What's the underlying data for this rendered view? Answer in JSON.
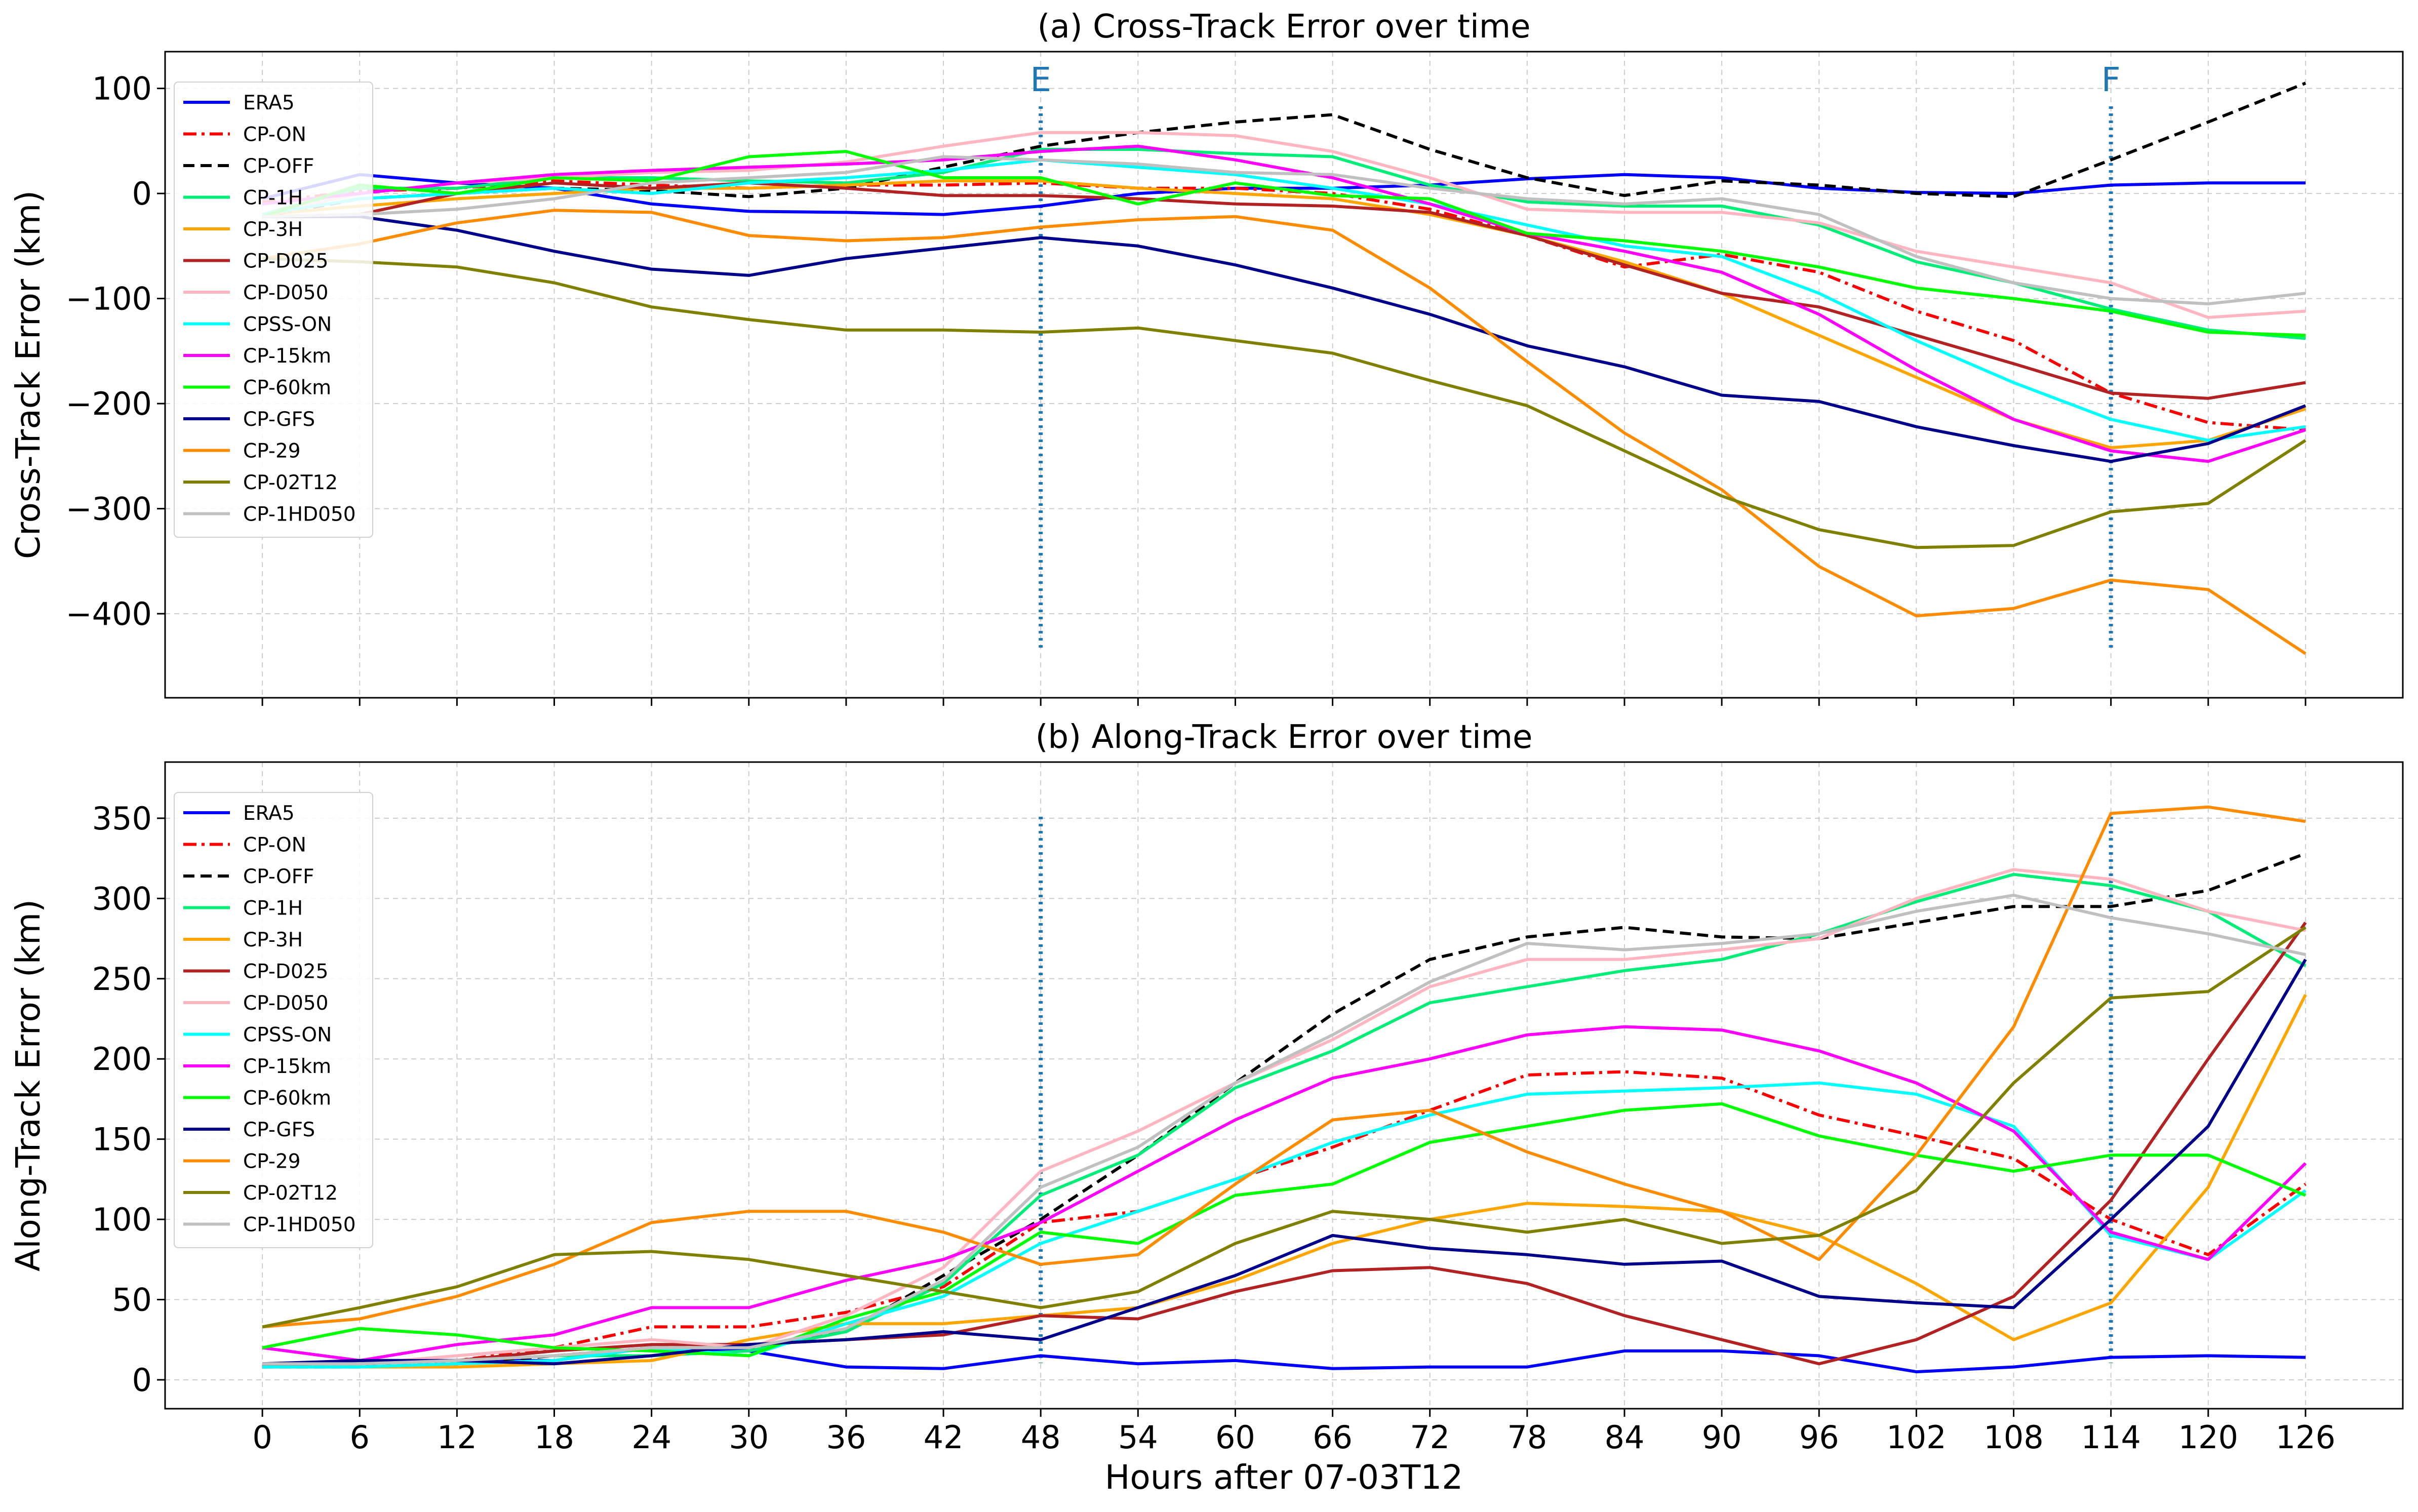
{
  "chart_data": [
    {
      "type": "line",
      "title": "(a) Cross-Track Error over time",
      "xlabel": "",
      "ylabel": "Cross-Track Error (km)",
      "x": [
        0,
        6,
        12,
        18,
        24,
        30,
        36,
        42,
        48,
        54,
        60,
        66,
        72,
        78,
        84,
        90,
        96,
        102,
        108,
        114,
        120,
        126
      ],
      "xlim": [
        -6,
        132
      ],
      "ylim": [
        -480,
        135
      ],
      "yticks": [
        100,
        0,
        -100,
        -200,
        -300,
        -400
      ],
      "grid": true,
      "legend_position": "left",
      "event_lines": [
        {
          "x": 48,
          "label": "E"
        },
        {
          "x": 114,
          "label": "F"
        }
      ],
      "series": [
        {
          "name": "ERA5",
          "color": "#0000ff",
          "dash": "solid",
          "values": [
            -5,
            18,
            10,
            5,
            -10,
            -17,
            -18,
            -20,
            -12,
            0,
            5,
            5,
            8,
            14,
            18,
            15,
            5,
            1,
            0,
            8,
            10,
            10
          ]
        },
        {
          "name": "CP-ON",
          "color": "#ff0000",
          "dash": "dashdot",
          "values": [
            -8,
            2,
            5,
            12,
            8,
            5,
            8,
            8,
            10,
            5,
            5,
            0,
            -15,
            -40,
            -70,
            -58,
            -75,
            -112,
            -140,
            -190,
            -218,
            -225
          ]
        },
        {
          "name": "CP-OFF",
          "color": "#000000",
          "dash": "dashed",
          "values": [
            -22,
            -5,
            0,
            5,
            3,
            -3,
            5,
            25,
            45,
            58,
            68,
            75,
            42,
            15,
            -2,
            12,
            8,
            0,
            -3,
            32,
            68,
            105
          ]
        },
        {
          "name": "CP-1H",
          "color": "#00ee77",
          "dash": "solid",
          "values": [
            -20,
            5,
            5,
            15,
            15,
            12,
            10,
            20,
            42,
            42,
            38,
            35,
            8,
            -8,
            -12,
            -12,
            -30,
            -65,
            -85,
            -110,
            -130,
            -138
          ]
        },
        {
          "name": "CP-3H",
          "color": "#ffa500",
          "dash": "solid",
          "values": [
            -20,
            -12,
            -5,
            0,
            5,
            5,
            8,
            12,
            12,
            5,
            0,
            -5,
            -20,
            -40,
            -65,
            -95,
            -135,
            -175,
            -215,
            -242,
            -235,
            -205
          ]
        },
        {
          "name": "CP-D025",
          "color": "#b22222",
          "dash": "solid",
          "values": [
            -22,
            -20,
            0,
            10,
            5,
            10,
            5,
            -2,
            -2,
            -5,
            -10,
            -12,
            -18,
            -40,
            -68,
            -95,
            -108,
            -135,
            -162,
            -190,
            -195,
            -180
          ]
        },
        {
          "name": "CP-D050",
          "color": "#ffb6c1",
          "dash": "solid",
          "values": [
            -20,
            0,
            10,
            15,
            20,
            22,
            30,
            45,
            58,
            58,
            55,
            40,
            15,
            -15,
            -18,
            -18,
            -28,
            -55,
            -70,
            -85,
            -118,
            -112
          ]
        },
        {
          "name": "CPSS-ON",
          "color": "#00ffff",
          "dash": "solid",
          "values": [
            -20,
            -5,
            0,
            5,
            0,
            10,
            15,
            22,
            32,
            25,
            18,
            5,
            -10,
            -30,
            -50,
            -60,
            -95,
            -140,
            -180,
            -215,
            -235,
            -222
          ]
        },
        {
          "name": "CP-15km",
          "color": "#ff00ff",
          "dash": "solid",
          "values": [
            -10,
            0,
            10,
            18,
            22,
            25,
            28,
            32,
            40,
            45,
            32,
            15,
            -10,
            -38,
            -55,
            -75,
            -115,
            -168,
            -215,
            -245,
            -255,
            -225
          ]
        },
        {
          "name": "CP-60km",
          "color": "#00ff00",
          "dash": "solid",
          "values": [
            -22,
            8,
            0,
            15,
            12,
            35,
            40,
            15,
            15,
            -10,
            10,
            -2,
            -5,
            -38,
            -45,
            -55,
            -70,
            -90,
            -100,
            -112,
            -132,
            -135
          ]
        },
        {
          "name": "CP-GFS",
          "color": "#00008b",
          "dash": "solid",
          "values": [
            -22,
            -22,
            -35,
            -55,
            -72,
            -78,
            -62,
            -52,
            -42,
            -50,
            -68,
            -90,
            -115,
            -145,
            -165,
            -192,
            -198,
            -222,
            -240,
            -255,
            -238,
            -202
          ]
        },
        {
          "name": "CP-29",
          "color": "#ff8c00",
          "dash": "solid",
          "values": [
            -62,
            -48,
            -28,
            -16,
            -18,
            -40,
            -45,
            -42,
            -32,
            -25,
            -22,
            -35,
            -90,
            -160,
            -228,
            -282,
            -355,
            -402,
            -395,
            -368,
            -377,
            -438
          ]
        },
        {
          "name": "CP-02T12",
          "color": "#808000",
          "dash": "solid",
          "values": [
            -62,
            -65,
            -70,
            -85,
            -108,
            -120,
            -130,
            -130,
            -132,
            -128,
            -140,
            -152,
            -178,
            -202,
            -245,
            -288,
            -320,
            -337,
            -335,
            -303,
            -295,
            -235
          ]
        },
        {
          "name": "CP-1HD050",
          "color": "#c0c0c0",
          "dash": "solid",
          "values": [
            -22,
            -20,
            -15,
            -5,
            10,
            15,
            20,
            35,
            32,
            28,
            20,
            18,
            5,
            -5,
            -10,
            -5,
            -20,
            -60,
            -85,
            -100,
            -105,
            -95
          ]
        }
      ]
    },
    {
      "type": "line",
      "title": "(b) Along-Track Error over time",
      "xlabel": "Hours after 07-03T12",
      "ylabel": "Along-Track Error (km)",
      "x": [
        0,
        6,
        12,
        18,
        24,
        30,
        36,
        42,
        48,
        54,
        60,
        66,
        72,
        78,
        84,
        90,
        96,
        102,
        108,
        114,
        120,
        126
      ],
      "xlim": [
        -6,
        132
      ],
      "ylim": [
        -18,
        385
      ],
      "yticks": [
        0,
        50,
        100,
        150,
        200,
        250,
        300,
        350
      ],
      "grid": true,
      "legend_position": "left",
      "event_lines": [
        {
          "x": 48,
          "label": ""
        },
        {
          "x": 114,
          "label": ""
        }
      ],
      "series": [
        {
          "name": "ERA5",
          "color": "#0000ff",
          "dash": "solid",
          "values": [
            8,
            12,
            12,
            12,
            20,
            18,
            8,
            7,
            15,
            10,
            12,
            7,
            8,
            8,
            18,
            18,
            15,
            5,
            8,
            14,
            15,
            14
          ]
        },
        {
          "name": "CP-ON",
          "color": "#ff0000",
          "dash": "dashdot",
          "values": [
            10,
            10,
            12,
            20,
            33,
            33,
            42,
            58,
            98,
            105,
            125,
            145,
            168,
            190,
            192,
            188,
            165,
            152,
            138,
            100,
            78,
            122
          ]
        },
        {
          "name": "CP-OFF",
          "color": "#000000",
          "dash": "dashed",
          "values": [
            8,
            8,
            10,
            15,
            20,
            20,
            30,
            65,
            100,
            140,
            185,
            228,
            262,
            276,
            282,
            276,
            275,
            285,
            295,
            295,
            305,
            328
          ]
        },
        {
          "name": "CP-1H",
          "color": "#00ee77",
          "dash": "solid",
          "values": [
            10,
            10,
            12,
            15,
            15,
            18,
            30,
            60,
            115,
            140,
            182,
            205,
            235,
            245,
            255,
            262,
            278,
            298,
            315,
            308,
            292,
            258
          ]
        },
        {
          "name": "CP-3H",
          "color": "#ffa500",
          "dash": "solid",
          "values": [
            8,
            8,
            8,
            10,
            12,
            25,
            35,
            35,
            40,
            45,
            62,
            85,
            100,
            110,
            108,
            105,
            90,
            60,
            25,
            48,
            120,
            240
          ]
        },
        {
          "name": "CP-D025",
          "color": "#b22222",
          "dash": "solid",
          "values": [
            8,
            12,
            12,
            18,
            22,
            22,
            25,
            28,
            40,
            38,
            55,
            68,
            70,
            60,
            40,
            25,
            10,
            25,
            52,
            112,
            200,
            285
          ]
        },
        {
          "name": "CP-D050",
          "color": "#ffb6c1",
          "dash": "solid",
          "values": [
            10,
            10,
            15,
            20,
            25,
            20,
            40,
            70,
            130,
            155,
            185,
            212,
            245,
            262,
            262,
            268,
            275,
            300,
            318,
            312,
            292,
            280
          ]
        },
        {
          "name": "CPSS-ON",
          "color": "#00ffff",
          "dash": "solid",
          "values": [
            8,
            8,
            10,
            12,
            20,
            15,
            35,
            52,
            85,
            105,
            125,
            148,
            165,
            178,
            180,
            182,
            185,
            178,
            158,
            90,
            75,
            118
          ]
        },
        {
          "name": "CP-15km",
          "color": "#ff00ff",
          "dash": "solid",
          "values": [
            20,
            12,
            22,
            28,
            45,
            45,
            62,
            75,
            98,
            130,
            162,
            188,
            200,
            215,
            220,
            218,
            205,
            185,
            155,
            92,
            75,
            135
          ]
        },
        {
          "name": "CP-60km",
          "color": "#00ff00",
          "dash": "solid",
          "values": [
            20,
            32,
            28,
            20,
            18,
            15,
            38,
            55,
            92,
            85,
            115,
            122,
            148,
            158,
            168,
            172,
            152,
            140,
            130,
            140,
            140,
            115
          ]
        },
        {
          "name": "CP-GFS",
          "color": "#00008b",
          "dash": "solid",
          "values": [
            10,
            12,
            12,
            10,
            15,
            22,
            25,
            30,
            25,
            45,
            65,
            90,
            82,
            78,
            72,
            74,
            52,
            48,
            45,
            100,
            158,
            262
          ]
        },
        {
          "name": "CP-29",
          "color": "#ff8c00",
          "dash": "solid",
          "values": [
            33,
            38,
            52,
            72,
            98,
            105,
            105,
            92,
            72,
            78,
            122,
            162,
            168,
            142,
            122,
            105,
            75,
            140,
            220,
            353,
            357,
            348
          ]
        },
        {
          "name": "CP-02T12",
          "color": "#808000",
          "dash": "solid",
          "values": [
            33,
            45,
            58,
            78,
            80,
            75,
            65,
            55,
            45,
            55,
            85,
            105,
            100,
            92,
            100,
            85,
            90,
            118,
            185,
            238,
            242,
            282
          ]
        },
        {
          "name": "CP-1HD050",
          "color": "#c0c0c0",
          "dash": "solid",
          "values": [
            10,
            10,
            12,
            15,
            20,
            20,
            32,
            62,
            120,
            145,
            185,
            215,
            248,
            272,
            268,
            272,
            278,
            292,
            302,
            288,
            278,
            265
          ]
        }
      ]
    }
  ]
}
